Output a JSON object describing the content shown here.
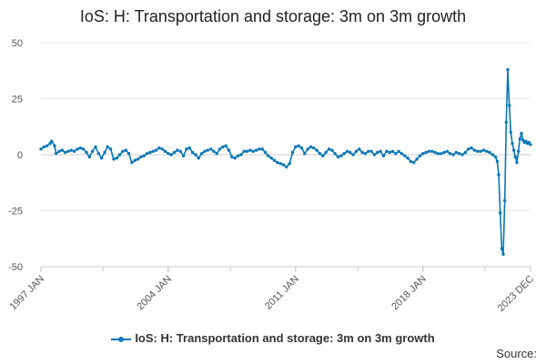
{
  "chart_data": {
    "type": "line",
    "title": "IoS: H: Transportation and storage: 3m on 3m growth",
    "xlabel": "",
    "ylabel": "",
    "ylim": [
      -50,
      50
    ],
    "yticks": [
      50,
      25,
      0,
      -25,
      -50
    ],
    "xlim": [
      "1997 JAN",
      "2023 DEC"
    ],
    "xticks": [
      "1997 JAN",
      "2004 JAN",
      "2011 JAN",
      "2018 JAN",
      "2023 DEC"
    ],
    "grid": true,
    "legend_position": "bottom",
    "series": [
      {
        "name": "IoS: H: Transportation and storage: 3m on 3m growth",
        "color": "#0a77b8",
        "points": [
          [
            "1997-01",
            2.5
          ],
          [
            "1997-03",
            3.5
          ],
          [
            "1997-05",
            4.0
          ],
          [
            "1997-07",
            5.0
          ],
          [
            "1997-08",
            6.0
          ],
          [
            "1997-10",
            4.0
          ],
          [
            "1997-11",
            0.5
          ],
          [
            "1998-01",
            1.5
          ],
          [
            "1998-03",
            2.0
          ],
          [
            "1998-05",
            1.0
          ],
          [
            "1998-07",
            1.5
          ],
          [
            "1998-09",
            2.0
          ],
          [
            "1998-11",
            1.5
          ],
          [
            "1999-01",
            2.5
          ],
          [
            "1999-03",
            3.0
          ],
          [
            "1999-05",
            2.5
          ],
          [
            "1999-07",
            1.0
          ],
          [
            "1999-09",
            -1.0
          ],
          [
            "1999-11",
            1.5
          ],
          [
            "2000-01",
            3.5
          ],
          [
            "2000-03",
            0.5
          ],
          [
            "2000-05",
            -1.5
          ],
          [
            "2000-07",
            1.0
          ],
          [
            "2000-09",
            3.5
          ],
          [
            "2000-11",
            2.5
          ],
          [
            "2001-01",
            -2.0
          ],
          [
            "2001-03",
            -1.5
          ],
          [
            "2001-05",
            0.0
          ],
          [
            "2001-07",
            1.5
          ],
          [
            "2001-09",
            2.0
          ],
          [
            "2001-11",
            0.5
          ],
          [
            "2002-01",
            -3.5
          ],
          [
            "2002-03",
            -2.5
          ],
          [
            "2002-05",
            -2.0
          ],
          [
            "2002-07",
            -1.0
          ],
          [
            "2002-09",
            -0.5
          ],
          [
            "2002-11",
            0.5
          ],
          [
            "2003-01",
            1.0
          ],
          [
            "2003-03",
            1.5
          ],
          [
            "2003-05",
            2.0
          ],
          [
            "2003-07",
            3.0
          ],
          [
            "2003-09",
            2.5
          ],
          [
            "2003-11",
            1.5
          ],
          [
            "2004-01",
            0.5
          ],
          [
            "2004-03",
            0.0
          ],
          [
            "2004-05",
            1.0
          ],
          [
            "2004-07",
            2.0
          ],
          [
            "2004-09",
            1.5
          ],
          [
            "2004-11",
            -0.5
          ],
          [
            "2005-01",
            2.5
          ],
          [
            "2005-03",
            3.0
          ],
          [
            "2005-05",
            1.0
          ],
          [
            "2005-07",
            0.0
          ],
          [
            "2005-09",
            -1.5
          ],
          [
            "2005-11",
            0.5
          ],
          [
            "2006-01",
            1.5
          ],
          [
            "2006-03",
            2.0
          ],
          [
            "2006-05",
            2.5
          ],
          [
            "2006-07",
            1.5
          ],
          [
            "2006-09",
            0.5
          ],
          [
            "2006-11",
            2.5
          ],
          [
            "2007-01",
            3.5
          ],
          [
            "2007-03",
            4.0
          ],
          [
            "2007-05",
            2.0
          ],
          [
            "2007-07",
            -1.0
          ],
          [
            "2007-09",
            -1.5
          ],
          [
            "2007-11",
            -0.5
          ],
          [
            "2008-01",
            0.0
          ],
          [
            "2008-03",
            1.5
          ],
          [
            "2008-05",
            1.5
          ],
          [
            "2008-07",
            2.0
          ],
          [
            "2008-09",
            1.5
          ],
          [
            "2008-11",
            2.0
          ],
          [
            "2009-01",
            2.5
          ],
          [
            "2009-03",
            2.5
          ],
          [
            "2009-05",
            1.0
          ],
          [
            "2009-07",
            -0.5
          ],
          [
            "2009-09",
            -1.5
          ],
          [
            "2009-11",
            -2.5
          ],
          [
            "2010-01",
            -3.5
          ],
          [
            "2010-03",
            -4.0
          ],
          [
            "2010-05",
            -4.5
          ],
          [
            "2010-07",
            -5.5
          ],
          [
            "2010-09",
            -4.0
          ],
          [
            "2010-11",
            1.0
          ],
          [
            "2011-01",
            3.5
          ],
          [
            "2011-03",
            4.0
          ],
          [
            "2011-05",
            3.0
          ],
          [
            "2011-07",
            0.5
          ],
          [
            "2011-09",
            2.5
          ],
          [
            "2011-11",
            3.5
          ],
          [
            "2012-01",
            3.0
          ],
          [
            "2012-03",
            2.0
          ],
          [
            "2012-05",
            0.5
          ],
          [
            "2012-07",
            -0.5
          ],
          [
            "2012-09",
            1.0
          ],
          [
            "2012-11",
            2.5
          ],
          [
            "2013-01",
            2.0
          ],
          [
            "2013-03",
            0.5
          ],
          [
            "2013-05",
            -1.0
          ],
          [
            "2013-07",
            -0.5
          ],
          [
            "2013-09",
            0.5
          ],
          [
            "2013-11",
            1.5
          ],
          [
            "2014-01",
            1.0
          ],
          [
            "2014-03",
            0.0
          ],
          [
            "2014-05",
            1.5
          ],
          [
            "2014-07",
            2.5
          ],
          [
            "2014-09",
            1.0
          ],
          [
            "2014-11",
            0.5
          ],
          [
            "2015-01",
            1.5
          ],
          [
            "2015-03",
            1.5
          ],
          [
            "2015-05",
            0.0
          ],
          [
            "2015-07",
            1.0
          ],
          [
            "2015-09",
            1.5
          ],
          [
            "2015-11",
            -0.5
          ],
          [
            "2016-01",
            1.5
          ],
          [
            "2016-03",
            1.0
          ],
          [
            "2016-05",
            1.5
          ],
          [
            "2016-07",
            0.5
          ],
          [
            "2016-09",
            1.5
          ],
          [
            "2016-11",
            0.5
          ],
          [
            "2017-01",
            -0.5
          ],
          [
            "2017-03",
            -1.5
          ],
          [
            "2017-05",
            -3.0
          ],
          [
            "2017-07",
            -3.5
          ],
          [
            "2017-09",
            -2.0
          ],
          [
            "2017-11",
            -0.5
          ],
          [
            "2018-01",
            0.5
          ],
          [
            "2018-03",
            1.0
          ],
          [
            "2018-05",
            1.5
          ],
          [
            "2018-07",
            1.5
          ],
          [
            "2018-09",
            1.0
          ],
          [
            "2018-11",
            0.5
          ],
          [
            "2019-01",
            0.5
          ],
          [
            "2019-03",
            1.0
          ],
          [
            "2019-05",
            1.5
          ],
          [
            "2019-07",
            0.5
          ],
          [
            "2019-09",
            0.0
          ],
          [
            "2019-11",
            1.0
          ],
          [
            "2020-01",
            0.5
          ],
          [
            "2020-03",
            0.0
          ],
          [
            "2020-05",
            1.0
          ],
          [
            "2020-07",
            2.5
          ],
          [
            "2020-09",
            3.0
          ],
          [
            "2020-11",
            2.0
          ],
          [
            "2021-01",
            1.5
          ],
          [
            "2021-03",
            1.5
          ],
          [
            "2021-05",
            2.0
          ],
          [
            "2021-07",
            1.5
          ],
          [
            "2021-09",
            1.0
          ],
          [
            "2021-11",
            0.0
          ],
          [
            "2022-01",
            -1.0
          ],
          [
            "2022-02",
            -3.0
          ],
          [
            "2022-03",
            -9.0
          ],
          [
            "2022-04",
            -26.0
          ],
          [
            "2022-05",
            -42.0
          ],
          [
            "2022-06",
            -44.5
          ],
          [
            "2022-07",
            -20.5
          ],
          [
            "2022-08",
            14.5
          ],
          [
            "2022-09",
            38.0
          ],
          [
            "2022-10",
            22.0
          ],
          [
            "2022-11",
            10.0
          ],
          [
            "2022-12",
            5.0
          ],
          [
            "2023-01",
            2.0
          ],
          [
            "2023-02",
            -1.0
          ],
          [
            "2023-03",
            -3.5
          ],
          [
            "2023-04",
            1.5
          ],
          [
            "2023-05",
            7.0
          ],
          [
            "2023-06",
            9.5
          ],
          [
            "2023-07",
            6.5
          ],
          [
            "2023-08",
            5.5
          ],
          [
            "2023-09",
            6.0
          ],
          [
            "2023-10",
            5.0
          ],
          [
            "2023-11",
            5.5
          ],
          [
            "2023-12",
            4.5
          ]
        ]
      }
    ]
  },
  "source_label": "Source:"
}
